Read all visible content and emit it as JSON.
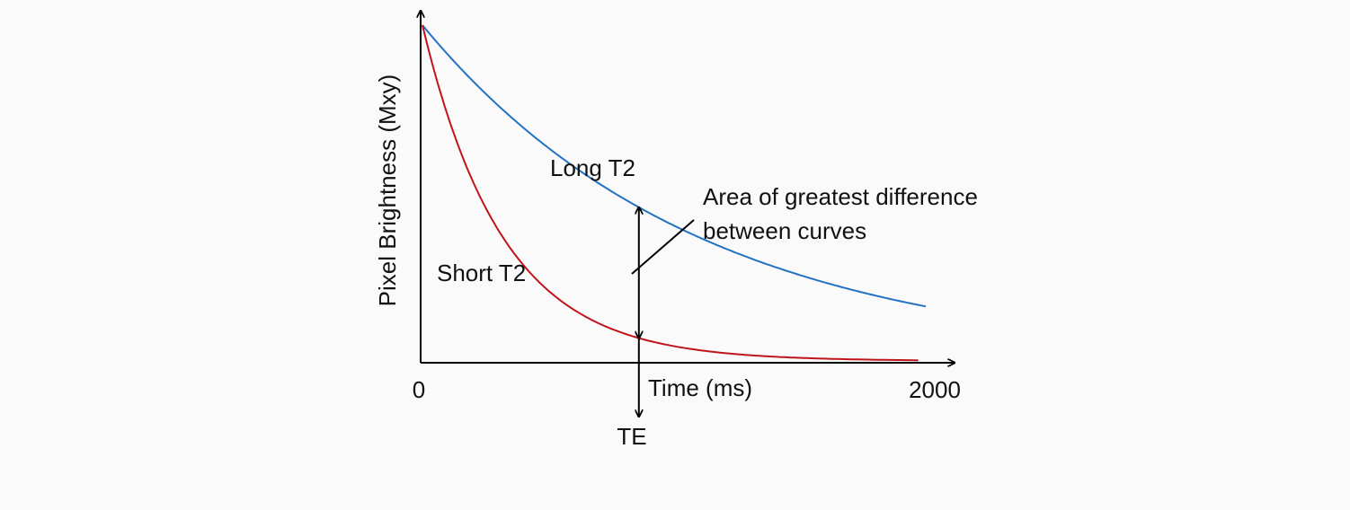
{
  "chart_data": {
    "type": "line",
    "title": "",
    "xlabel": "Time (ms)",
    "ylabel": "Pixel Brightness (Mxy)",
    "xlim": [
      0,
      2000
    ],
    "ylim": [
      0,
      1
    ],
    "x_tick_labels": [
      "0",
      "2000"
    ],
    "grid": false,
    "series": [
      {
        "name": "Long T2",
        "color": "#2272c3",
        "t2": 1100,
        "x_end": 2000
      },
      {
        "name": "Short T2",
        "color": "#c0141b",
        "t2": 320,
        "x_end": 1970
      }
    ],
    "te": {
      "label": "TE",
      "x": 860
    },
    "annotation": {
      "lines": [
        "Area of greatest difference",
        "between curves"
      ]
    }
  }
}
